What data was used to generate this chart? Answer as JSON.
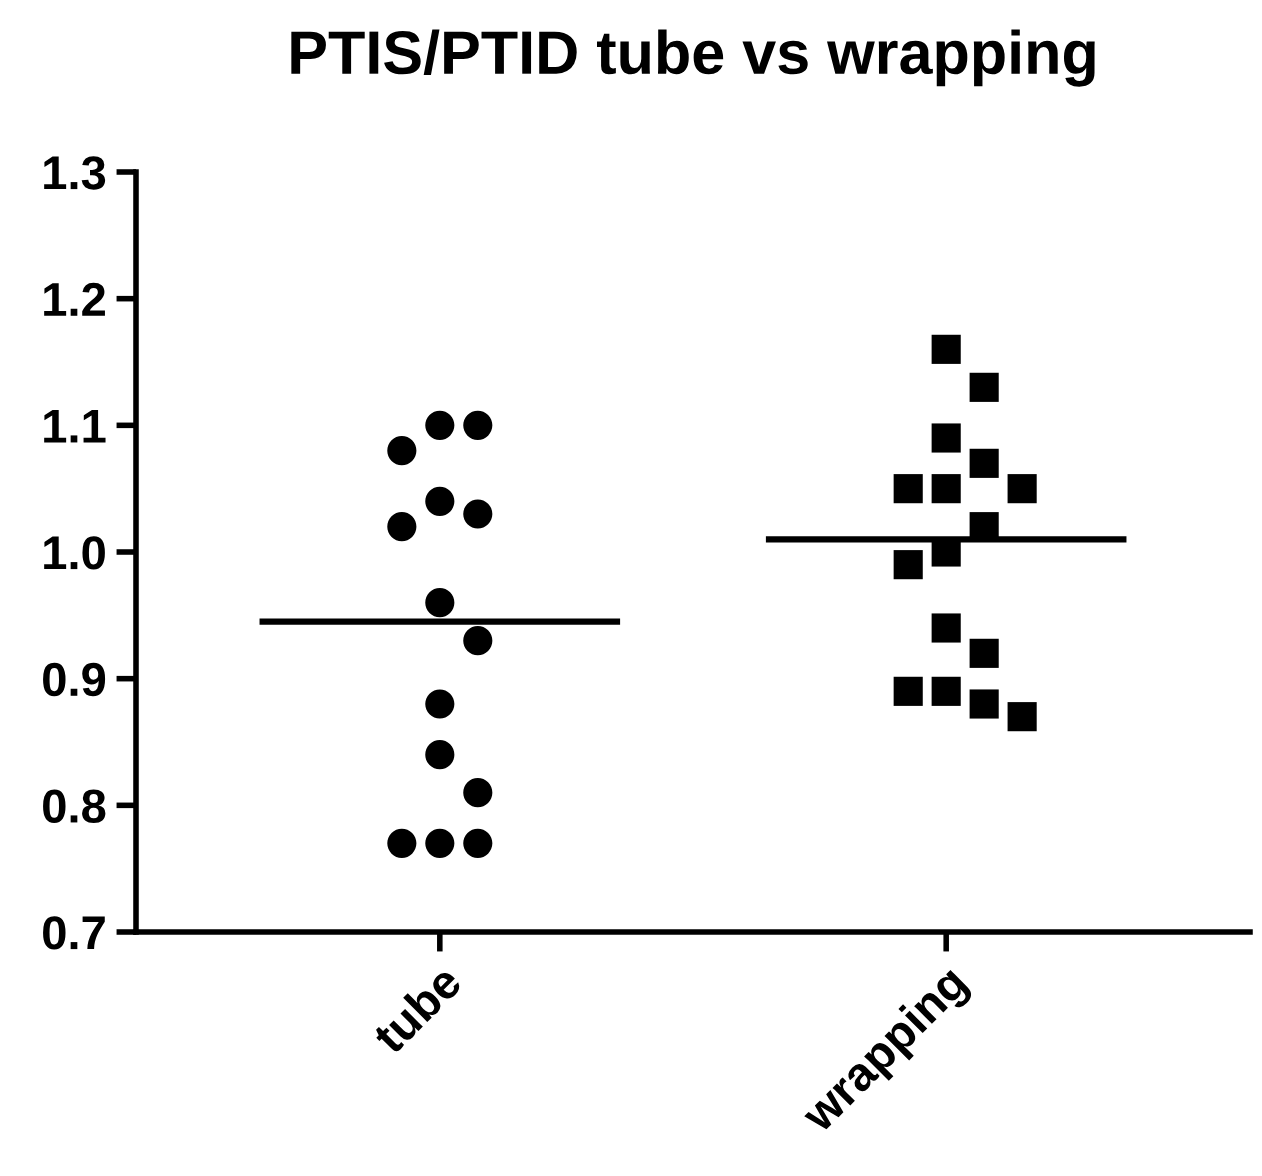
{
  "chart_data": {
    "type": "scatter",
    "title": "PTIS/PTID tube vs wrapping",
    "categories": [
      "tube",
      "wrapping"
    ],
    "ylim": [
      0.7,
      1.3
    ],
    "yticks": [
      0.7,
      0.8,
      0.9,
      {
        "value": 1.0,
        "label": "1.0"
      },
      1.1,
      1.2,
      1.3
    ],
    "grid": false,
    "legend": false,
    "ref_lines": [
      {
        "axis": "y",
        "value": 0.945,
        "color": "#000000"
      },
      {
        "axis": "y",
        "value": 1.01,
        "color": "#000000"
      }
    ],
    "series": [
      {
        "type": "scatter",
        "marker": "circle",
        "color": "#000000",
        "x": [
          "tube",
          "tube",
          "tube",
          "tube",
          "tube",
          "tube",
          "tube",
          "tube",
          "tube",
          "tube",
          "tube",
          "tube",
          "tube",
          "tube"
        ],
        "values": [
          1.1,
          1.1,
          1.08,
          1.04,
          1.03,
          1.02,
          0.96,
          0.93,
          0.88,
          0.84,
          0.81,
          0.77,
          0.77,
          0.77
        ]
      },
      {
        "marker": "square",
        "color": "#000000",
        "x": [
          "wrapping",
          "wrapping",
          "wrapping",
          "wrapping",
          "wrapping",
          "wrapping",
          "wrapping",
          "wrapping",
          "wrapping",
          "wrapping",
          "wrapping",
          "wrapping",
          "wrapping",
          "wrapping",
          "wrapping",
          "wrapping"
        ],
        "values": [
          1.16,
          1.13,
          1.09,
          1.07,
          1.05,
          1.05,
          1.05,
          1.02,
          1.0,
          0.99,
          0.94,
          0.92,
          0.89,
          0.89,
          0.88,
          0.87
        ]
      }
    ]
  }
}
